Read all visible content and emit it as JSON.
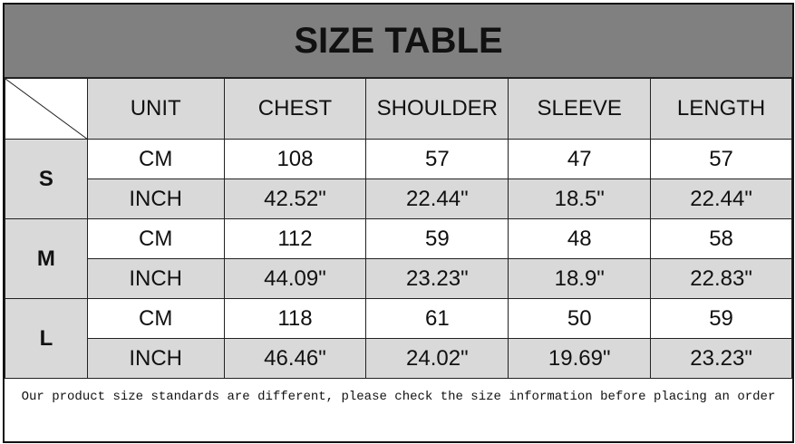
{
  "title": "SIZE TABLE",
  "headers": [
    "UNIT",
    "CHEST",
    "SHOULDER",
    "SLEEVE",
    "LENGTH"
  ],
  "sizes": [
    {
      "size": "S",
      "cm": {
        "unit": "CM",
        "values": [
          "108",
          "57",
          "47",
          "57"
        ]
      },
      "inch": {
        "unit": "INCH",
        "values": [
          "42.52\"",
          "22.44\"",
          "18.5\"",
          "22.44\""
        ]
      }
    },
    {
      "size": "M",
      "cm": {
        "unit": "CM",
        "values": [
          "112",
          "59",
          "48",
          "58"
        ]
      },
      "inch": {
        "unit": "INCH",
        "values": [
          "44.09\"",
          "23.23\"",
          "18.9\"",
          "22.83\""
        ]
      }
    },
    {
      "size": "L",
      "cm": {
        "unit": "CM",
        "values": [
          "118",
          "61",
          "50",
          "59"
        ]
      },
      "inch": {
        "unit": "INCH",
        "values": [
          "46.46\"",
          "24.02\"",
          "19.69\"",
          "23.23\""
        ]
      }
    }
  ],
  "note": "Our product size standards are different, please check the size information before placing an order",
  "colors": {
    "title_bg": "#808080",
    "cell_gray": "#d9d9d9"
  }
}
